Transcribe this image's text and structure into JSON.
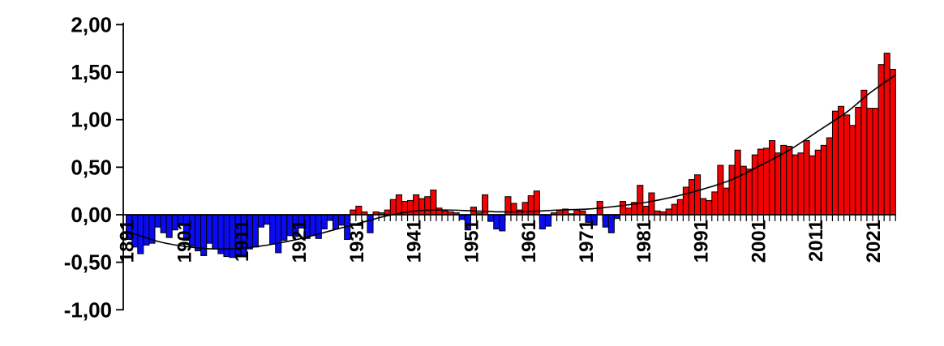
{
  "chart_data": {
    "type": "bar",
    "title": "",
    "description": "Annual anomaly bar chart with smoothed trend line, values in degrees (comma decimal format)",
    "start_year": 1891,
    "end_year": 2024,
    "values": [
      -0.26,
      -0.34,
      -0.41,
      -0.32,
      -0.3,
      -0.13,
      -0.19,
      -0.24,
      -0.16,
      -0.09,
      -0.27,
      -0.33,
      -0.38,
      -0.43,
      -0.3,
      -0.36,
      -0.41,
      -0.44,
      -0.45,
      -0.42,
      -0.44,
      -0.36,
      -0.34,
      -0.13,
      -0.1,
      -0.31,
      -0.4,
      -0.27,
      -0.22,
      -0.23,
      -0.14,
      -0.25,
      -0.22,
      -0.25,
      -0.15,
      -0.06,
      -0.15,
      -0.11,
      -0.26,
      0.05,
      0.09,
      0.03,
      -0.19,
      0.03,
      0.02,
      0.05,
      0.16,
      0.21,
      0.14,
      0.15,
      0.21,
      0.17,
      0.19,
      0.26,
      0.07,
      0.04,
      0.03,
      0.02,
      -0.05,
      -0.16,
      0.08,
      0.02,
      0.21,
      -0.07,
      -0.15,
      -0.17,
      0.19,
      0.12,
      0.05,
      0.13,
      0.2,
      0.25,
      -0.15,
      -0.12,
      0.02,
      0.05,
      0.06,
      0.01,
      0.05,
      0.04,
      -0.08,
      -0.11,
      0.14,
      -0.13,
      -0.19,
      -0.04,
      0.14,
      0.07,
      0.13,
      0.31,
      0.09,
      0.23,
      0.04,
      0.03,
      0.06,
      0.11,
      0.16,
      0.29,
      0.37,
      0.42,
      0.17,
      0.15,
      0.24,
      0.52,
      0.28,
      0.52,
      0.68,
      0.51,
      0.48,
      0.63,
      0.69,
      0.7,
      0.78,
      0.65,
      0.73,
      0.72,
      0.63,
      0.65,
      0.78,
      0.62,
      0.68,
      0.73,
      0.81,
      1.09,
      1.14,
      1.05,
      0.94,
      1.13,
      1.31,
      1.12,
      1.12,
      1.58,
      1.7,
      1.53
    ],
    "trend_line": {
      "name": "smoothed-trend",
      "points": [
        [
          1891,
          -0.17
        ],
        [
          1896,
          -0.28
        ],
        [
          1901,
          -0.335
        ],
        [
          1906,
          -0.36
        ],
        [
          1911,
          -0.35
        ],
        [
          1916,
          -0.31
        ],
        [
          1921,
          -0.25
        ],
        [
          1926,
          -0.17
        ],
        [
          1931,
          -0.09
        ],
        [
          1936,
          -0.01
        ],
        [
          1941,
          0.04
        ],
        [
          1946,
          0.05
        ],
        [
          1951,
          0.04
        ],
        [
          1956,
          0.03
        ],
        [
          1961,
          0.035
        ],
        [
          1966,
          0.05
        ],
        [
          1971,
          0.06
        ],
        [
          1976,
          0.09
        ],
        [
          1981,
          0.13
        ],
        [
          1986,
          0.19
        ],
        [
          1991,
          0.27
        ],
        [
          1996,
          0.37
        ],
        [
          2001,
          0.52
        ],
        [
          2006,
          0.68
        ],
        [
          2011,
          0.88
        ],
        [
          2016,
          1.08
        ],
        [
          2020,
          1.28
        ],
        [
          2024,
          1.47
        ]
      ]
    },
    "y_axis": {
      "min": -1.0,
      "max": 2.0,
      "tick_step": 0.5,
      "tick_labels": [
        "2,00",
        "1,50",
        "1,00",
        "0,50",
        "0,00",
        "-0,50",
        "-1,00"
      ],
      "grid": false
    },
    "x_axis": {
      "tick_interval_years": 1,
      "label_interval_years": 10,
      "labels": [
        "1891",
        "1901",
        "1911",
        "1921",
        "1931",
        "1941",
        "1951",
        "1961",
        "1971",
        "1981",
        "1991",
        "2001",
        "2011",
        "2021"
      ],
      "label_rotation_deg": -90
    },
    "legend": {
      "visible": false
    },
    "colors": {
      "positive_bar": "#f20202",
      "negative_bar": "#0b0bf0",
      "bar_outline": "#000000",
      "trend_line": "#000000",
      "axis": "#000000",
      "background": "#ffffff"
    }
  }
}
